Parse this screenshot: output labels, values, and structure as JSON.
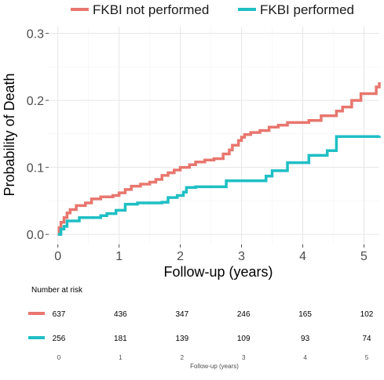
{
  "chart_data": {
    "type": "line",
    "step": true,
    "xlabel": "Follow-up (years)",
    "ylabel": "Probability of Death",
    "xlim": [
      -0.15,
      5.25
    ],
    "ylim": [
      -0.015,
      0.31
    ],
    "x_ticks": [
      0,
      1,
      2,
      3,
      4,
      5
    ],
    "x_tick_labels": [
      "0",
      "1",
      "2",
      "3",
      "4",
      "5"
    ],
    "y_ticks": [
      0.0,
      0.1,
      0.2,
      0.3
    ],
    "y_tick_labels": [
      "0.0",
      "0.1",
      "0.2",
      "0.3"
    ],
    "grid": true,
    "legend_position": "top",
    "series": [
      {
        "name": "FKBI not performed",
        "color": "#E8766E",
        "points": [
          [
            0,
            0
          ],
          [
            0.02,
            0.01
          ],
          [
            0.05,
            0.018
          ],
          [
            0.1,
            0.025
          ],
          [
            0.15,
            0.032
          ],
          [
            0.2,
            0.037
          ],
          [
            0.3,
            0.043
          ],
          [
            0.45,
            0.047
          ],
          [
            0.55,
            0.053
          ],
          [
            0.7,
            0.056
          ],
          [
            0.9,
            0.058
          ],
          [
            1.0,
            0.062
          ],
          [
            1.1,
            0.067
          ],
          [
            1.2,
            0.072
          ],
          [
            1.35,
            0.075
          ],
          [
            1.5,
            0.078
          ],
          [
            1.6,
            0.082
          ],
          [
            1.7,
            0.088
          ],
          [
            1.8,
            0.092
          ],
          [
            1.9,
            0.096
          ],
          [
            2.0,
            0.1
          ],
          [
            2.15,
            0.104
          ],
          [
            2.25,
            0.108
          ],
          [
            2.4,
            0.111
          ],
          [
            2.55,
            0.113
          ],
          [
            2.7,
            0.12
          ],
          [
            2.8,
            0.126
          ],
          [
            2.85,
            0.133
          ],
          [
            2.95,
            0.14
          ],
          [
            3.0,
            0.145
          ],
          [
            3.05,
            0.149
          ],
          [
            3.15,
            0.152
          ],
          [
            3.3,
            0.155
          ],
          [
            3.45,
            0.16
          ],
          [
            3.6,
            0.163
          ],
          [
            3.75,
            0.167
          ],
          [
            4.1,
            0.17
          ],
          [
            4.3,
            0.177
          ],
          [
            4.55,
            0.184
          ],
          [
            4.65,
            0.19
          ],
          [
            4.8,
            0.2
          ],
          [
            4.95,
            0.21
          ],
          [
            5.2,
            0.22
          ],
          [
            5.25,
            0.227
          ]
        ]
      },
      {
        "name": "FKBI performed",
        "color": "#1FBFC4",
        "points": [
          [
            0,
            0
          ],
          [
            0.05,
            0.008
          ],
          [
            0.1,
            0.012
          ],
          [
            0.15,
            0.02
          ],
          [
            0.35,
            0.025
          ],
          [
            0.7,
            0.028
          ],
          [
            0.8,
            0.031
          ],
          [
            0.95,
            0.036
          ],
          [
            1.1,
            0.045
          ],
          [
            1.3,
            0.047
          ],
          [
            1.7,
            0.048
          ],
          [
            1.8,
            0.055
          ],
          [
            1.95,
            0.058
          ],
          [
            2.05,
            0.063
          ],
          [
            2.1,
            0.07
          ],
          [
            2.25,
            0.071
          ],
          [
            2.75,
            0.08
          ],
          [
            3.4,
            0.087
          ],
          [
            3.5,
            0.095
          ],
          [
            3.75,
            0.107
          ],
          [
            4.1,
            0.118
          ],
          [
            4.4,
            0.125
          ],
          [
            4.55,
            0.146
          ],
          [
            5.25,
            0.147
          ]
        ]
      }
    ],
    "risk_table": {
      "title": "Number at risk",
      "x_ticks": [
        0,
        1,
        2,
        3,
        4,
        5
      ],
      "x_tick_labels": [
        "0",
        "1",
        "2",
        "3",
        "4",
        "5"
      ],
      "xlabel": "Follow-up (years)",
      "rows": [
        {
          "series": "FKBI not performed",
          "color": "#E8766E",
          "values": [
            "637",
            "436",
            "347",
            "246",
            "165",
            "102"
          ]
        },
        {
          "series": "FKBI performed",
          "color": "#1FBFC4",
          "values": [
            "256",
            "181",
            "139",
            "109",
            "93",
            "74"
          ]
        }
      ]
    }
  }
}
